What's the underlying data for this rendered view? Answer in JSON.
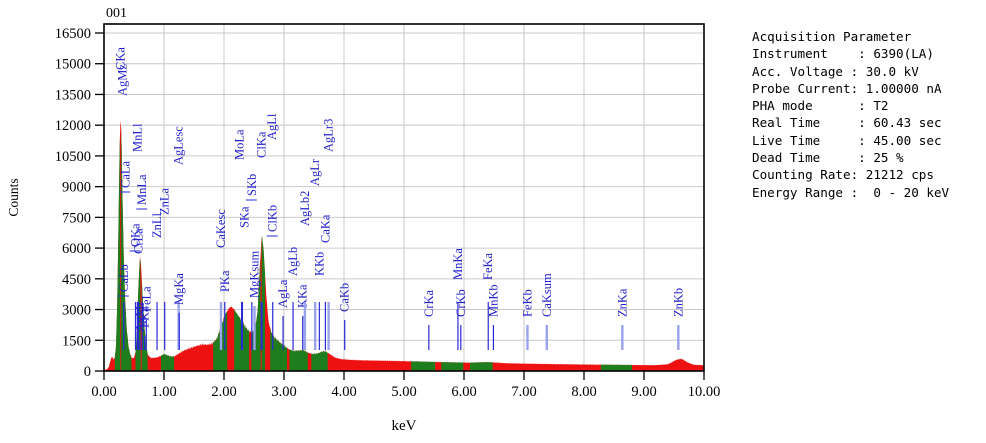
{
  "title": "001",
  "panel": {
    "title": "Acquisition Parameter",
    "lines": [
      "Instrument    : 6390(LA)",
      "Acc. Voltage : 30.0 kV",
      "Probe Current: 1.00000 nA",
      "PHA mode      : T2",
      "Real Time     : 60.43 sec",
      "Live Time     : 45.00 sec",
      "Dead Time     : 25 %",
      "Counting Rate: 21212 cps",
      "Energy Range :  0 - 20 keV"
    ]
  },
  "chart_data": {
    "type": "area",
    "title": "001",
    "xlabel": "keV",
    "ylabel": "Counts",
    "xlim": [
      0,
      10
    ],
    "ylim": [
      0,
      16500
    ],
    "x_tick_step": 1.0,
    "y_tick_step": 1500,
    "x_tick_labels": [
      "0.00",
      "1.00",
      "2.00",
      "3.00",
      "4.00",
      "5.00",
      "6.00",
      "7.00",
      "8.00",
      "9.00",
      "10.00"
    ],
    "y_tick_labels": [
      "0",
      "1500",
      "3000",
      "4500",
      "6000",
      "7500",
      "9000",
      "10500",
      "12000",
      "13500",
      "15000",
      "16500"
    ],
    "grid": true,
    "colors": {
      "spectrum_red": "#ee1111",
      "roi_green": "#1e7e1e",
      "peak_label_blue": "#2222cd",
      "marker_dark": "#2a2ad8",
      "marker_light": "#9aa2ec",
      "grid_gray": "#c9c9c9",
      "frame_black": "#000000"
    },
    "series": [
      {
        "name": "spectrum_counts",
        "points": [
          [
            0.0,
            60
          ],
          [
            0.05,
            80
          ],
          [
            0.08,
            200
          ],
          [
            0.1,
            430
          ],
          [
            0.12,
            620
          ],
          [
            0.14,
            700
          ],
          [
            0.16,
            560
          ],
          [
            0.18,
            650
          ],
          [
            0.2,
            1200
          ],
          [
            0.22,
            3200
          ],
          [
            0.24,
            6800
          ],
          [
            0.26,
            10800
          ],
          [
            0.277,
            12450
          ],
          [
            0.29,
            11500
          ],
          [
            0.31,
            8200
          ],
          [
            0.33,
            5400
          ],
          [
            0.35,
            3600
          ],
          [
            0.38,
            2000
          ],
          [
            0.41,
            1150
          ],
          [
            0.44,
            780
          ],
          [
            0.47,
            620
          ],
          [
            0.5,
            640
          ],
          [
            0.53,
            980
          ],
          [
            0.55,
            2100
          ],
          [
            0.57,
            3900
          ],
          [
            0.6,
            5600
          ],
          [
            0.62,
            5100
          ],
          [
            0.64,
            3800
          ],
          [
            0.67,
            2300
          ],
          [
            0.7,
            1250
          ],
          [
            0.73,
            800
          ],
          [
            0.78,
            640
          ],
          [
            0.84,
            640
          ],
          [
            0.9,
            680
          ],
          [
            0.96,
            760
          ],
          [
            1.01,
            820
          ],
          [
            1.06,
            760
          ],
          [
            1.12,
            700
          ],
          [
            1.18,
            720
          ],
          [
            1.25,
            860
          ],
          [
            1.32,
            980
          ],
          [
            1.4,
            1080
          ],
          [
            1.48,
            1160
          ],
          [
            1.56,
            1240
          ],
          [
            1.64,
            1300
          ],
          [
            1.72,
            1280
          ],
          [
            1.8,
            1330
          ],
          [
            1.88,
            1560
          ],
          [
            1.95,
            2150
          ],
          [
            2.02,
            2750
          ],
          [
            2.08,
            3050
          ],
          [
            2.12,
            3150
          ],
          [
            2.17,
            3000
          ],
          [
            2.22,
            2780
          ],
          [
            2.28,
            2500
          ],
          [
            2.34,
            2220
          ],
          [
            2.4,
            1980
          ],
          [
            2.46,
            1870
          ],
          [
            2.52,
            2100
          ],
          [
            2.56,
            2900
          ],
          [
            2.6,
            5200
          ],
          [
            2.63,
            6650
          ],
          [
            2.66,
            5900
          ],
          [
            2.7,
            3900
          ],
          [
            2.74,
            2450
          ],
          [
            2.79,
            1850
          ],
          [
            2.85,
            1600
          ],
          [
            2.92,
            1420
          ],
          [
            3.0,
            1230
          ],
          [
            3.08,
            1060
          ],
          [
            3.16,
            980
          ],
          [
            3.24,
            990
          ],
          [
            3.32,
            1020
          ],
          [
            3.4,
            890
          ],
          [
            3.48,
            830
          ],
          [
            3.56,
            850
          ],
          [
            3.63,
            940
          ],
          [
            3.69,
            960
          ],
          [
            3.76,
            830
          ],
          [
            3.85,
            660
          ],
          [
            3.95,
            580
          ],
          [
            4.1,
            545
          ],
          [
            4.3,
            520
          ],
          [
            4.6,
            505
          ],
          [
            5.0,
            480
          ],
          [
            5.4,
            450
          ],
          [
            5.8,
            420
          ],
          [
            6.1,
            405
          ],
          [
            6.35,
            430
          ],
          [
            6.45,
            425
          ],
          [
            6.7,
            380
          ],
          [
            7.0,
            360
          ],
          [
            7.4,
            340
          ],
          [
            7.9,
            320
          ],
          [
            8.4,
            305
          ],
          [
            8.9,
            290
          ],
          [
            9.2,
            285
          ],
          [
            9.4,
            330
          ],
          [
            9.55,
            560
          ],
          [
            9.63,
            590
          ],
          [
            9.72,
            430
          ],
          [
            9.82,
            310
          ],
          [
            9.92,
            290
          ],
          [
            10.0,
            285
          ]
        ]
      }
    ],
    "green_roi_bands_kev": [
      [
        0.18,
        0.272
      ],
      [
        0.285,
        0.46
      ],
      [
        0.525,
        0.612
      ],
      [
        0.628,
        0.73
      ],
      [
        0.95,
        1.17
      ],
      [
        1.82,
        2.055
      ],
      [
        2.17,
        2.42
      ],
      [
        2.455,
        2.612
      ],
      [
        2.628,
        2.685
      ],
      [
        2.77,
        3.05
      ],
      [
        3.09,
        3.4
      ],
      [
        3.455,
        3.73
      ],
      [
        5.12,
        5.52
      ],
      [
        5.62,
        5.99
      ],
      [
        6.1,
        6.48
      ],
      [
        8.28,
        8.8
      ]
    ],
    "element_lines": [
      {
        "label": "CKa",
        "kev": 0.277,
        "label_bottom": 70,
        "marker": false,
        "light": false,
        "dash": false,
        "dx": 0
      },
      {
        "label": "AgMz",
        "kev": 0.31,
        "label_bottom": 96,
        "marker": false,
        "light": false,
        "dash": false,
        "dx": 0
      },
      {
        "label": "CaLa",
        "kev": 0.355,
        "label_bottom": 188,
        "marker": false,
        "light": false,
        "dash": true,
        "dx": 0
      },
      {
        "label": "CaLb",
        "kev": 0.33,
        "label_bottom": 292,
        "marker": true,
        "light": false,
        "dash": true,
        "dx": 0
      },
      {
        "label": "OKa",
        "kev": 0.525,
        "label_bottom": 247,
        "marker": true,
        "light": false,
        "dash": true,
        "dx": 0
      },
      {
        "label": "CrLa",
        "kev": 0.573,
        "label_bottom": 254,
        "marker": true,
        "light": false,
        "dash": false,
        "dx": 0
      },
      {
        "label": "MnLl",
        "kev": 0.556,
        "label_bottom": 152,
        "marker": true,
        "light": false,
        "dash": false,
        "dx": 0
      },
      {
        "label": "MnLa",
        "kev": 0.637,
        "label_bottom": 205,
        "marker": true,
        "light": false,
        "dash": true,
        "dx": 0
      },
      {
        "label": "AgMr",
        "kev": 0.6,
        "label_bottom": 332,
        "marker": true,
        "light": false,
        "dash": false,
        "dx": 0
      },
      {
        "label": "FKa",
        "kev": 0.677,
        "label_bottom": 328,
        "marker": true,
        "light": false,
        "dash": false,
        "dx": 0
      },
      {
        "label": "FeLa",
        "kev": 0.705,
        "label_bottom": 312,
        "marker": true,
        "light": false,
        "dash": false,
        "dx": 0
      },
      {
        "label": "ZnLl",
        "kev": 0.884,
        "label_bottom": 238,
        "marker": true,
        "light": false,
        "dash": false,
        "dx": 0
      },
      {
        "label": "ZnLa",
        "kev": 1.012,
        "label_bottom": 215,
        "marker": true,
        "light": false,
        "dash": false,
        "dx": 0
      },
      {
        "label": "AgLesc",
        "kev": 1.244,
        "label_bottom": 165,
        "marker": true,
        "light": true,
        "dash": false,
        "dx": 0
      },
      {
        "label": "MgKa",
        "kev": 1.254,
        "label_bottom": 305,
        "marker": true,
        "light": false,
        "dash": false,
        "dx": 0
      },
      {
        "label": "CaKesc",
        "kev": 1.95,
        "label_bottom": 248,
        "marker": true,
        "light": true,
        "dash": false,
        "dx": 0
      },
      {
        "label": "PKa",
        "kev": 2.013,
        "label_bottom": 292,
        "marker": true,
        "light": false,
        "dash": false,
        "dx": 0
      },
      {
        "label": "MoLa",
        "kev": 2.293,
        "label_bottom": 160,
        "marker": true,
        "light": false,
        "dash": false,
        "dx": -2
      },
      {
        "label": "SKa",
        "kev": 2.307,
        "label_bottom": 228,
        "marker": true,
        "light": false,
        "dash": false,
        "dx": 2
      },
      {
        "label": "SKb",
        "kev": 2.464,
        "label_bottom": 196,
        "marker": true,
        "light": false,
        "dash": true,
        "dx": 0
      },
      {
        "label": "MgKsum",
        "kev": 2.508,
        "label_bottom": 298,
        "marker": true,
        "light": true,
        "dash": false,
        "dx": 0
      },
      {
        "label": "ClKa",
        "kev": 2.621,
        "label_bottom": 158,
        "marker": true,
        "light": false,
        "dash": false,
        "dx": 0
      },
      {
        "label": "AgLl",
        "kev": 2.633,
        "label_bottom": 140,
        "marker": true,
        "light": false,
        "dash": false,
        "dx": 10
      },
      {
        "label": "ClKb",
        "kev": 2.812,
        "label_bottom": 232,
        "marker": true,
        "light": false,
        "dash": true,
        "dx": 0
      },
      {
        "label": "AgLa",
        "kev": 2.984,
        "label_bottom": 308,
        "marker": true,
        "light": false,
        "dash": false,
        "dx": 0
      },
      {
        "label": "AgLb",
        "kev": 3.151,
        "label_bottom": 276,
        "marker": true,
        "light": false,
        "dash": false,
        "dx": 0
      },
      {
        "label": "KKa",
        "kev": 3.312,
        "label_bottom": 308,
        "marker": true,
        "light": false,
        "dash": false,
        "dx": 0
      },
      {
        "label": "AgLb2",
        "kev": 3.348,
        "label_bottom": 226,
        "marker": true,
        "light": true,
        "dash": false,
        "dx": 0
      },
      {
        "label": "AgLr",
        "kev": 3.52,
        "label_bottom": 186,
        "marker": true,
        "light": true,
        "dash": false,
        "dx": 0
      },
      {
        "label": "KKb",
        "kev": 3.589,
        "label_bottom": 276,
        "marker": true,
        "light": false,
        "dash": false,
        "dx": 0
      },
      {
        "label": "CaKa",
        "kev": 3.69,
        "label_bottom": 243,
        "marker": true,
        "light": false,
        "dash": false,
        "dx": 0
      },
      {
        "label": "AgLr3",
        "kev": 3.743,
        "label_bottom": 152,
        "marker": true,
        "light": true,
        "dash": false,
        "dx": 0
      },
      {
        "label": "CaKb",
        "kev": 4.012,
        "label_bottom": 312,
        "marker": true,
        "light": false,
        "dash": false,
        "dx": 0
      },
      {
        "label": "CrKa",
        "kev": 5.414,
        "label_bottom": 317,
        "marker": true,
        "light": false,
        "dash": false,
        "dx": 0
      },
      {
        "label": "MnKa",
        "kev": 5.899,
        "label_bottom": 280,
        "marker": true,
        "light": false,
        "dash": false,
        "dx": 0
      },
      {
        "label": "CrKb",
        "kev": 5.947,
        "label_bottom": 317,
        "marker": true,
        "light": false,
        "dash": false,
        "dx": 0
      },
      {
        "label": "FeKa",
        "kev": 6.404,
        "label_bottom": 280,
        "marker": true,
        "light": false,
        "dash": false,
        "dx": 0
      },
      {
        "label": "MnKb",
        "kev": 6.49,
        "label_bottom": 317,
        "marker": true,
        "light": false,
        "dash": false,
        "dx": 0
      },
      {
        "label": "FeKb",
        "kev": 7.058,
        "label_bottom": 317,
        "marker": true,
        "light": true,
        "dash": false,
        "dx": 0
      },
      {
        "label": "CaKsum",
        "kev": 7.38,
        "label_bottom": 317,
        "marker": true,
        "light": true,
        "dash": false,
        "dx": 0
      },
      {
        "label": "ZnKa",
        "kev": 8.639,
        "label_bottom": 317,
        "marker": true,
        "light": true,
        "dash": false,
        "dx": 0
      },
      {
        "label": "ZnKb",
        "kev": 9.572,
        "label_bottom": 317,
        "marker": true,
        "light": true,
        "dash": false,
        "dx": 0
      }
    ]
  }
}
